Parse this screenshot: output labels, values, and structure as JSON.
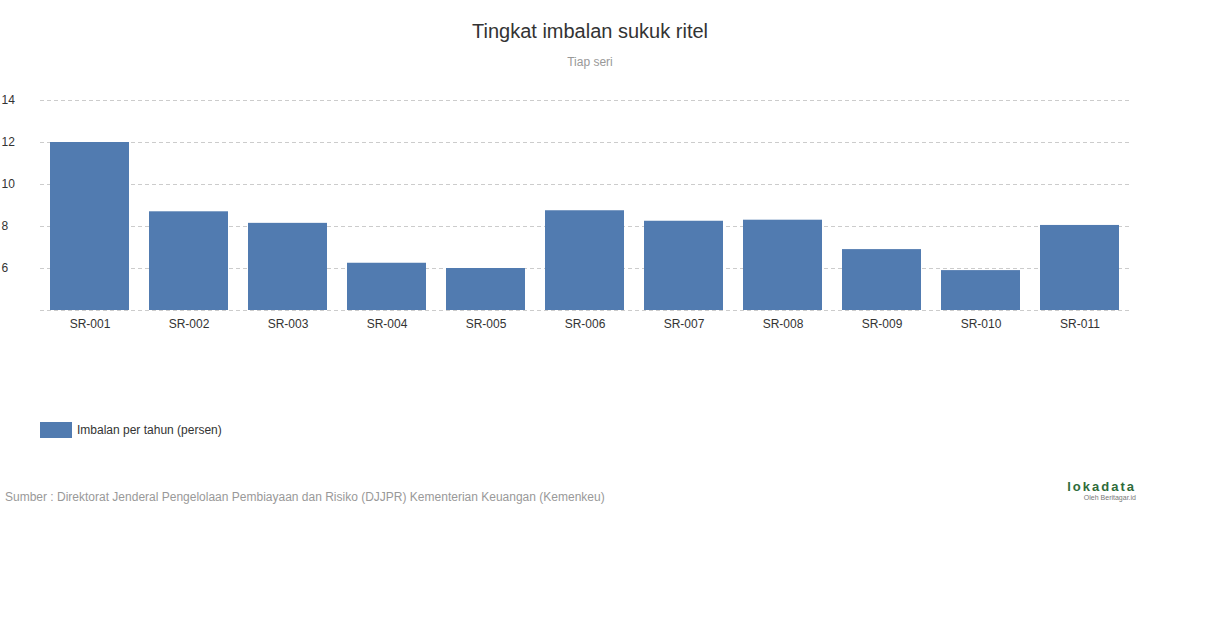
{
  "chart_data": {
    "type": "bar",
    "title": "Tingkat imbalan sukuk ritel",
    "subtitle": "Tiap seri",
    "categories": [
      "SR-001",
      "SR-002",
      "SR-003",
      "SR-004",
      "SR-005",
      "SR-006",
      "SR-007",
      "SR-008",
      "SR-009",
      "SR-010",
      "SR-011"
    ],
    "series": [
      {
        "name": "Imbalan per tahun (persen)",
        "color": "#517bb0",
        "values": [
          12.0,
          8.7,
          8.15,
          6.25,
          6.0,
          8.75,
          8.25,
          8.3,
          6.9,
          5.9,
          8.05
        ]
      }
    ],
    "ylim": [
      4,
      14
    ],
    "yticks": [
      6,
      8,
      10,
      12,
      14
    ],
    "grid": true,
    "legend": "bottom",
    "source": "Sumber : Direktorat Jenderal Pengelolaan Pembiayaan dan Risiko (DJJPR) Kementerian Keuangan (Kemenkeu)",
    "logo_text": "lokadata",
    "logo_subtext": "Oleh Beritagar.id"
  }
}
